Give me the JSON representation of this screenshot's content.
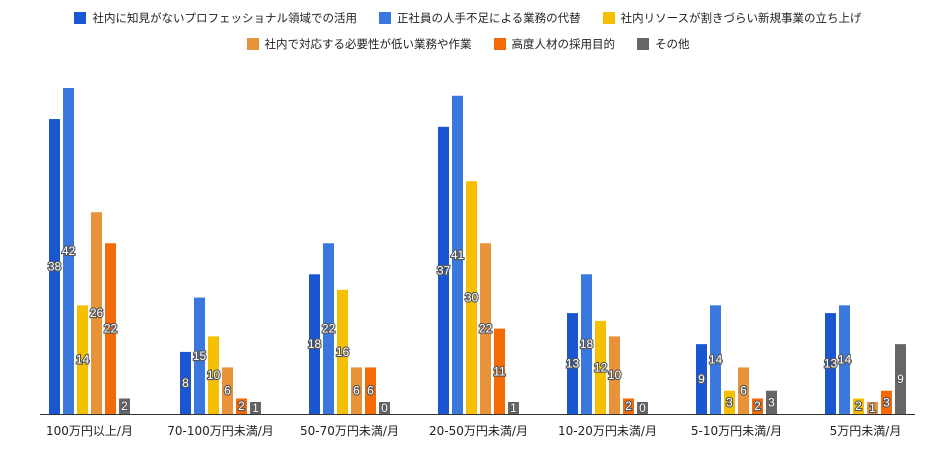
{
  "chart_data": {
    "type": "bar",
    "categories": [
      "100万円以上/月",
      "70-100万円未満/月",
      "50-70万円未満/月",
      "20-50万円未満/月",
      "10-20万円未満/月",
      "5-10万円未満/月",
      "5万円未満/月"
    ],
    "series": [
      {
        "name": "社内に知見がないプロフェッショナル領域での活用",
        "color": "#1a56d0",
        "values": [
          38,
          8,
          18,
          37,
          13,
          9,
          13
        ]
      },
      {
        "name": "正社員の人手不足による業務の代替",
        "color": "#3a78dd",
        "values": [
          42,
          15,
          22,
          41,
          18,
          14,
          14
        ]
      },
      {
        "name": "社内リソースが割きづらい新規事業の立ち上げ",
        "color": "#f5c000",
        "values": [
          14,
          10,
          16,
          30,
          12,
          3,
          2
        ]
      },
      {
        "name": "社内で対応する必要性が低い業務や作業",
        "color": "#e8923a",
        "values": [
          26,
          6,
          6,
          22,
          10,
          6,
          1
        ]
      },
      {
        "name": "高度人材の採用目的",
        "color": "#f46a05",
        "values": [
          22,
          2,
          6,
          11,
          2,
          2,
          3
        ]
      },
      {
        "name": "その他",
        "color": "#666666",
        "values": [
          2,
          1,
          0,
          1,
          0,
          3,
          9
        ]
      }
    ],
    "ylim": [
      0,
      42
    ],
    "legend_position": "top",
    "grid": false
  }
}
